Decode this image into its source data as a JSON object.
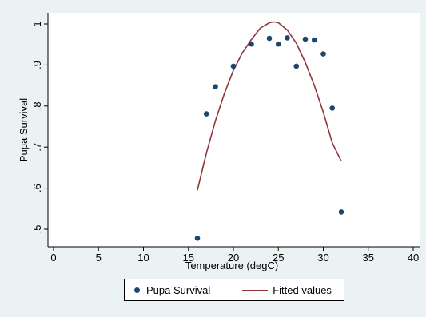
{
  "chart_data": {
    "type": "scatter",
    "xlabel": "Temperature (degC)",
    "ylabel": "Pupa Survival",
    "xlim": [
      0,
      40
    ],
    "ylim": [
      0.47,
      1.03
    ],
    "xticks": [
      "0",
      "5",
      "10",
      "15",
      "20",
      "25",
      "30",
      "35",
      "40"
    ],
    "yticks": [
      ".5",
      ".6",
      ".7",
      ".8",
      ".9",
      "1"
    ],
    "grid": false,
    "legend_placement": "bottom",
    "series": [
      {
        "name": "Pupa Survival",
        "kind": "scatter",
        "color": "#1a476f",
        "x": [
          16,
          17,
          18,
          20,
          22,
          24,
          25,
          26,
          27,
          28,
          29,
          30,
          31,
          32
        ],
        "y": [
          0.478,
          0.781,
          0.847,
          0.897,
          0.951,
          0.965,
          0.951,
          0.966,
          0.897,
          0.963,
          0.961,
          0.927,
          0.795,
          0.542
        ]
      },
      {
        "name": "Fitted values",
        "kind": "line",
        "color": "#90353b",
        "x": [
          16,
          17,
          18,
          19,
          20,
          21,
          22,
          23,
          24,
          24.5,
          25,
          26,
          27,
          28,
          29,
          30,
          31,
          32
        ],
        "y": [
          0.595,
          0.686,
          0.764,
          0.831,
          0.887,
          0.93,
          0.962,
          0.99,
          1.003,
          1.005,
          1.003,
          0.985,
          0.953,
          0.906,
          0.85,
          0.785,
          0.71,
          0.666
        ]
      }
    ]
  },
  "legend": {
    "scatter_label": "Pupa Survival",
    "line_label": "Fitted values"
  },
  "colors": {
    "background": "#eaf2f3",
    "plot_region": "#ffffff",
    "marker": "#1a476f",
    "fit_line": "#90353b"
  }
}
